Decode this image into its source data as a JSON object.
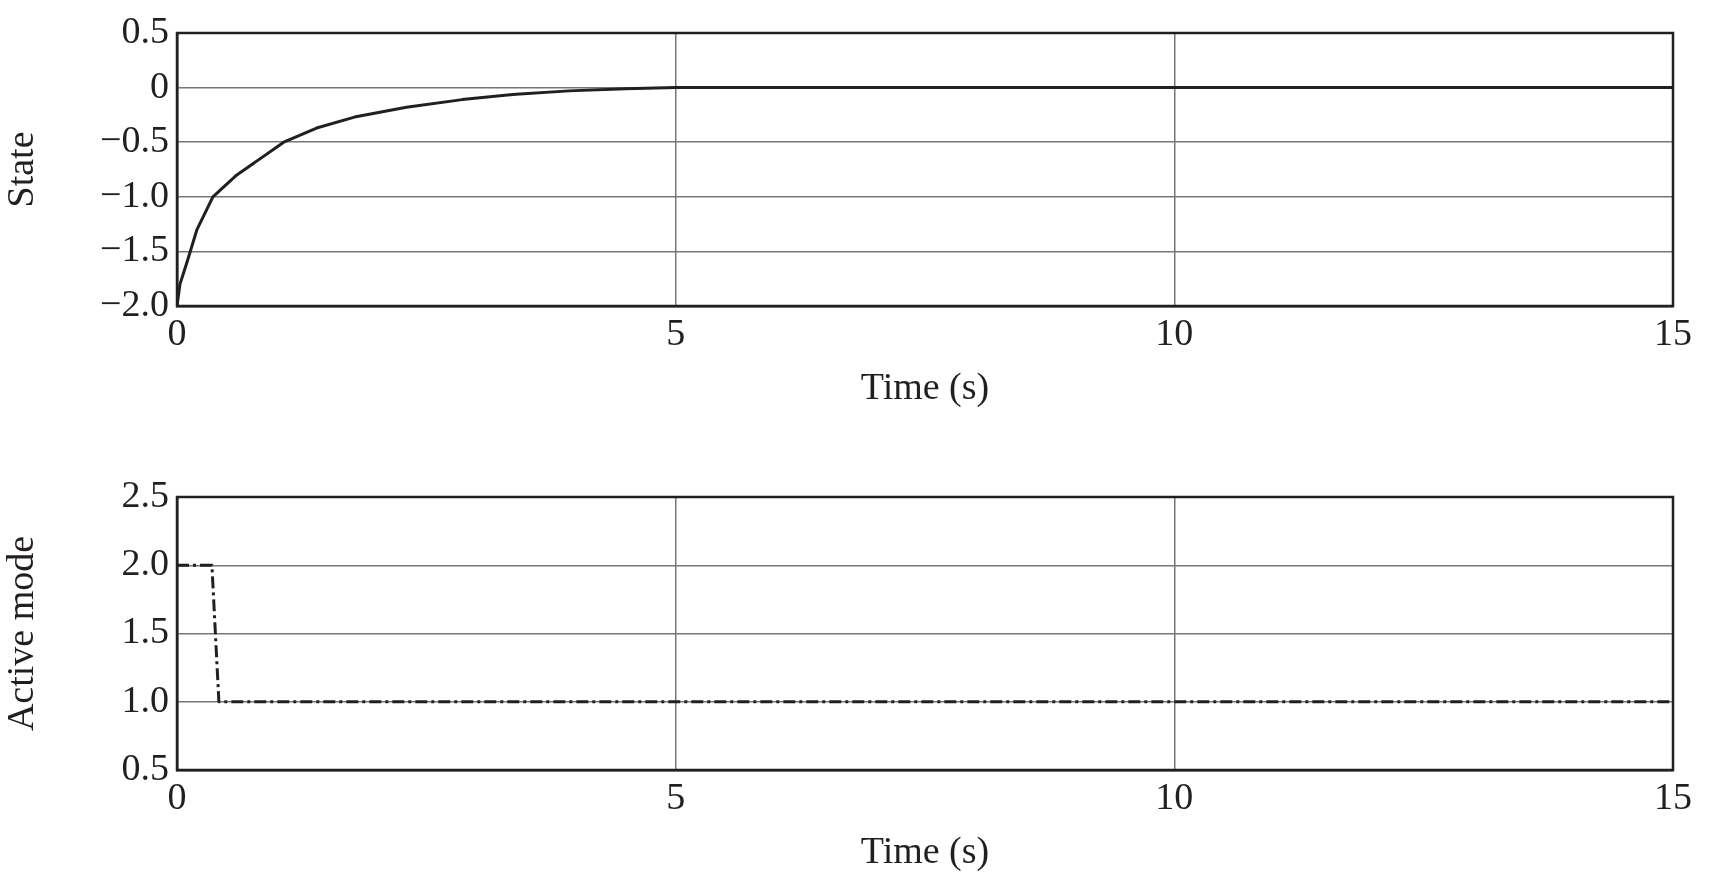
{
  "chart_data": [
    {
      "type": "line",
      "xlabel": "Time (s)",
      "ylabel": "State",
      "xlim": [
        0,
        15
      ],
      "xticks": [
        0,
        5,
        10,
        15
      ],
      "ylim": [
        -2.0,
        0.5
      ],
      "yticks": [
        0.5,
        0,
        {
          "value": -0.5,
          "label": "−0.5"
        },
        {
          "value": -1.0,
          "label": "−1.0"
        },
        {
          "value": -1.5,
          "label": "−1.5"
        },
        {
          "value": -2.0,
          "label": "−2.0"
        }
      ],
      "grid": true,
      "line_style": "solid",
      "marker": "none",
      "series": [
        {
          "color": "#231f20",
          "x": [
            0,
            0.03,
            0.1,
            0.2,
            0.36,
            0.6,
            1.07,
            1.4,
            1.78,
            2.3,
            2.86,
            3.4,
            3.93,
            4.5,
            5,
            7,
            10,
            15
          ],
          "values": [
            -2.0,
            -1.8,
            -1.6,
            -1.3,
            -1.0,
            -0.8,
            -0.5,
            -0.37,
            -0.27,
            -0.18,
            -0.11,
            -0.06,
            -0.03,
            -0.01,
            0,
            0,
            0,
            0
          ]
        }
      ]
    },
    {
      "type": "line",
      "xlabel": "Time (s)",
      "ylabel": "Active mode",
      "xlim": [
        0,
        15
      ],
      "xticks": [
        0,
        5,
        10,
        15
      ],
      "ylim": [
        0.5,
        2.5
      ],
      "yticks": [
        2.5,
        {
          "value": 2.0,
          "label": "2.0"
        },
        1.5,
        {
          "value": 1.0,
          "label": "1.0"
        },
        0.5
      ],
      "grid": true,
      "line_style": "dashed",
      "marker": "none",
      "series": [
        {
          "color": "#231f20",
          "x": [
            0,
            0.35,
            0.42,
            15
          ],
          "values": [
            2.0,
            2.0,
            1.0,
            1.0
          ]
        }
      ]
    }
  ]
}
